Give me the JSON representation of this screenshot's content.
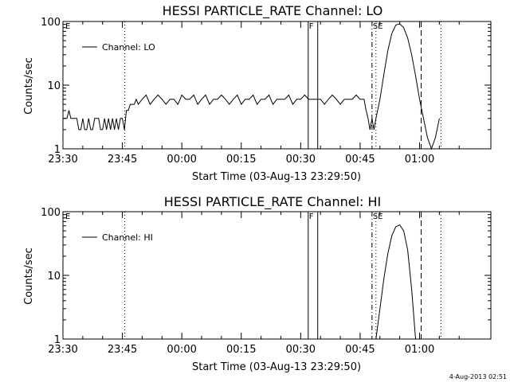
{
  "stamp": "4-Aug-2013 02:51",
  "chart_data": [
    {
      "type": "line",
      "title": "HESSI PARTICLE_RATE Channel: LO",
      "xlabel": "Start Time (03-Aug-13 23:29:50)",
      "ylabel": "Counts/sec",
      "yscale": "log",
      "ylim": [
        1,
        100
      ],
      "xlim_minutes": [
        0,
        108
      ],
      "x_ticks": [
        "23:30",
        "23:45",
        "00:00",
        "00:15",
        "00:30",
        "00:45",
        "01:00"
      ],
      "y_ticks": [
        "1",
        "10",
        "100"
      ],
      "legend": {
        "label": "Channel: LO",
        "placement": "top-left"
      },
      "flags": [
        "E",
        "F",
        "SE"
      ],
      "vlines": [
        {
          "x": 15.6,
          "style": "dotted"
        },
        {
          "x": 61.9,
          "style": "solid"
        },
        {
          "x": 64.3,
          "style": "solid"
        },
        {
          "x": 78.0,
          "style": "dash-dot"
        },
        {
          "x": 79.0,
          "style": "dotted"
        },
        {
          "x": 90.4,
          "style": "dashed"
        },
        {
          "x": 95.4,
          "style": "dotted"
        }
      ],
      "series": [
        {
          "name": "Channel: LO",
          "x": [
            0,
            0.5,
            1,
            1.5,
            2,
            2.5,
            3,
            3.5,
            4,
            4.5,
            5,
            5.5,
            6,
            6.5,
            7,
            7.5,
            8,
            8.5,
            9,
            9.5,
            10,
            10.5,
            11,
            11.5,
            12,
            12.5,
            13,
            13.5,
            14,
            14.5,
            15,
            15.5,
            16,
            16.5,
            17,
            17.5,
            18,
            18.5,
            19,
            20,
            21,
            22,
            23,
            24,
            25,
            26,
            27,
            28,
            29,
            30,
            31,
            32,
            33,
            34,
            35,
            36,
            37,
            38,
            39,
            40,
            41,
            42,
            43,
            44,
            45,
            46,
            47,
            48,
            49,
            50,
            51,
            52,
            53,
            54,
            55,
            56,
            57,
            58,
            59,
            60,
            61,
            62,
            63,
            64,
            65,
            66,
            67,
            68,
            69,
            70,
            71,
            72,
            73,
            74,
            75,
            76,
            76.5,
            77,
            77.5,
            78,
            78.5,
            79,
            80,
            81,
            82,
            83,
            84,
            85,
            86,
            87,
            88,
            89,
            90,
            91,
            92,
            93,
            94,
            95
          ],
          "y": [
            3,
            3,
            3,
            4,
            3,
            3,
            3,
            3,
            2,
            2,
            3,
            2,
            2,
            3,
            2,
            2,
            3,
            3,
            3,
            2,
            2,
            3,
            2,
            3,
            2,
            3,
            2,
            3,
            2,
            3,
            3,
            2,
            4,
            4,
            5,
            5,
            5,
            6,
            5,
            6,
            7,
            5,
            6,
            7,
            6,
            5,
            6,
            6,
            5,
            7,
            6,
            6,
            7,
            5,
            6,
            7,
            5,
            6,
            6,
            7,
            6,
            5,
            6,
            7,
            5,
            6,
            6,
            7,
            5,
            6,
            6,
            7,
            5,
            6,
            6,
            6,
            7,
            5,
            6,
            6,
            7,
            6,
            6,
            6,
            6,
            5,
            6,
            7,
            6,
            5,
            6,
            6,
            6,
            7,
            6,
            6,
            4,
            3,
            2,
            3,
            2,
            3,
            6,
            15,
            35,
            65,
            88,
            92,
            80,
            55,
            30,
            14,
            6,
            3,
            1.5,
            1,
            1.5,
            3
          ]
        }
      ]
    },
    {
      "type": "line",
      "title": "HESSI PARTICLE_RATE Channel: HI",
      "xlabel": "Start Time (03-Aug-13 23:29:50)",
      "ylabel": "Counts/sec",
      "yscale": "log",
      "ylim": [
        1,
        100
      ],
      "xlim_minutes": [
        0,
        108
      ],
      "x_ticks": [
        "23:30",
        "23:45",
        "00:00",
        "00:15",
        "00:30",
        "00:45",
        "01:00"
      ],
      "y_ticks": [
        "1",
        "10",
        "100"
      ],
      "legend": {
        "label": "Channel: HI",
        "placement": "top-left"
      },
      "flags": [
        "E",
        "F",
        "SE"
      ],
      "vlines": [
        {
          "x": 15.6,
          "style": "dotted"
        },
        {
          "x": 61.9,
          "style": "solid"
        },
        {
          "x": 64.3,
          "style": "solid"
        },
        {
          "x": 78.0,
          "style": "dash-dot"
        },
        {
          "x": 79.0,
          "style": "dotted"
        },
        {
          "x": 90.4,
          "style": "dashed"
        },
        {
          "x": 95.4,
          "style": "dotted"
        }
      ],
      "series": [
        {
          "name": "Channel: HI",
          "x": [
            79,
            80,
            81,
            82,
            83,
            84,
            85,
            86,
            87,
            88,
            89
          ],
          "y": [
            1,
            3,
            9,
            22,
            42,
            58,
            62,
            50,
            25,
            6,
            1
          ]
        }
      ]
    }
  ]
}
